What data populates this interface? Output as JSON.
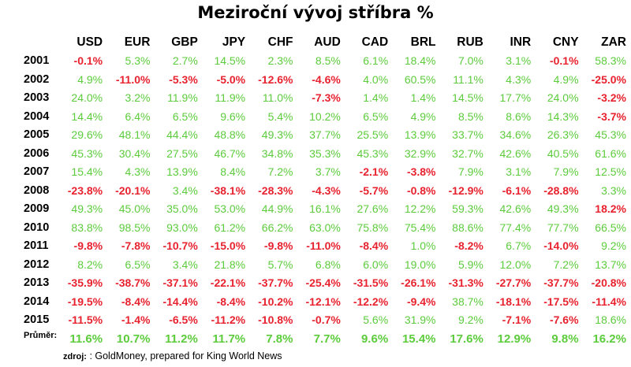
{
  "title": "Meziroční vývoj stříbra %",
  "source_label": "zdroj:",
  "source_text": ": GoldMoney, prepared for King World News",
  "colors": {
    "positive": "#5ccc3c",
    "negative": "#e8222f"
  },
  "chart_data": {
    "type": "table",
    "title": "Meziroční vývoj stříbra %",
    "columns": [
      "USD",
      "EUR",
      "GBP",
      "JPY",
      "CHF",
      "AUD",
      "CAD",
      "BRL",
      "RUB",
      "INR",
      "CNY",
      "ZAR"
    ],
    "rows": [
      {
        "label": "2001",
        "values": [
          "-0.1%",
          "5.3%",
          "2.7%",
          "14.5%",
          "2.3%",
          "8.5%",
          "6.1%",
          "18.4%",
          "7.0%",
          "3.1%",
          "-0.1%",
          "58.3%"
        ]
      },
      {
        "label": "2002",
        "values": [
          "4.9%",
          "-11.0%",
          "-5.3%",
          "-5.0%",
          "-12.6%",
          "-4.6%",
          "4.0%",
          "60.5%",
          "11.1%",
          "4.3%",
          "4.9%",
          "-25.0%"
        ]
      },
      {
        "label": "2003",
        "values": [
          "24.0%",
          "3.2%",
          "11.9%",
          "11.9%",
          "11.0%",
          "-7.3%",
          "1.4%",
          "1.4%",
          "14.5%",
          "17.7%",
          "24.0%",
          "-3.2%"
        ]
      },
      {
        "label": "2004",
        "values": [
          "14.4%",
          "6.4%",
          "6.5%",
          "9.6%",
          "5.4%",
          "10.2%",
          "6.5%",
          "4.9%",
          "8.5%",
          "8.6%",
          "14.3%",
          "-3.7%"
        ]
      },
      {
        "label": "2005",
        "values": [
          "29.6%",
          "48.1%",
          "44.4%",
          "48.8%",
          "49.3%",
          "37.7%",
          "25.5%",
          "13.9%",
          "33.7%",
          "34.6%",
          "26.3%",
          "45.3%"
        ]
      },
      {
        "label": "2006",
        "values": [
          "45.3%",
          "30.4%",
          "27.5%",
          "46.7%",
          "34.8%",
          "35.3%",
          "45.3%",
          "32.9%",
          "32.7%",
          "42.6%",
          "40.5%",
          "61.6%"
        ]
      },
      {
        "label": "2007",
        "values": [
          "15.4%",
          "4.3%",
          "13.9%",
          "8.4%",
          "7.2%",
          "3.7%",
          "-2.1%",
          "-3.8%",
          "7.9%",
          "3.1%",
          "7.9%",
          "12.5%"
        ]
      },
      {
        "label": "2008",
        "values": [
          "-23.8%",
          "-20.1%",
          "3.4%",
          "-38.1%",
          "-28.3%",
          "-4.3%",
          "-5.7%",
          "-0.8%",
          "-12.9%",
          "-6.1%",
          "-28.8%",
          "3.3%"
        ]
      },
      {
        "label": "2009",
        "values": [
          "49.3%",
          "45.0%",
          "35.0%",
          "53.0%",
          "44.9%",
          "16.1%",
          "27.6%",
          "12.2%",
          "59.3%",
          "42.6%",
          "49.3%",
          "18.2%"
        ]
      },
      {
        "label": "2010",
        "values": [
          "83.8%",
          "98.5%",
          "93.0%",
          "61.2%",
          "66.2%",
          "63.0%",
          "75.8%",
          "75.4%",
          "88.6%",
          "77.4%",
          "77.7%",
          "66.5%"
        ]
      },
      {
        "label": "2011",
        "values": [
          "-9.8%",
          "-7.8%",
          "-10.7%",
          "-15.0%",
          "-9.8%",
          "-11.0%",
          "-8.4%",
          "1.0%",
          "-8.2%",
          "6.7%",
          "-14.0%",
          "9.2%"
        ]
      },
      {
        "label": "2012",
        "values": [
          "8.2%",
          "6.5%",
          "3.4%",
          "21.8%",
          "5.7%",
          "6.8%",
          "6.0%",
          "19.0%",
          "5.9%",
          "12.0%",
          "7.2%",
          "13.7%"
        ]
      },
      {
        "label": "2013",
        "values": [
          "-35.9%",
          "-38.7%",
          "-37.1%",
          "-22.1%",
          "-37.7%",
          "-25.4%",
          "-31.5%",
          "-26.1%",
          "-31.3%",
          "-27.7%",
          "-37.7%",
          "-20.8%"
        ]
      },
      {
        "label": "2014",
        "values": [
          "-19.5%",
          "-8.4%",
          "-14.4%",
          "-8.4%",
          "-10.2%",
          "-12.1%",
          "-12.2%",
          "-9.4%",
          "38.7%",
          "-18.1%",
          "-17.5%",
          "-11.4%"
        ]
      },
      {
        "label": "2015",
        "values": [
          "-11.5%",
          "-1.4%",
          "-6.5%",
          "-11.2%",
          "-10.8%",
          "-0.7%",
          "5.6%",
          "31.9%",
          "9.2%",
          "-7.1%",
          "-7.6%",
          "18.6%"
        ]
      },
      {
        "label": "Průměr:",
        "values": [
          "11.6%",
          "10.7%",
          "11.2%",
          "11.7%",
          "7.8%",
          "7.7%",
          "9.6%",
          "15.4%",
          "17.6%",
          "12.9%",
          "9.8%",
          "16.2%"
        ]
      }
    ],
    "highlight_red_cells": [
      [
        "2009",
        "ZAR"
      ]
    ]
  }
}
